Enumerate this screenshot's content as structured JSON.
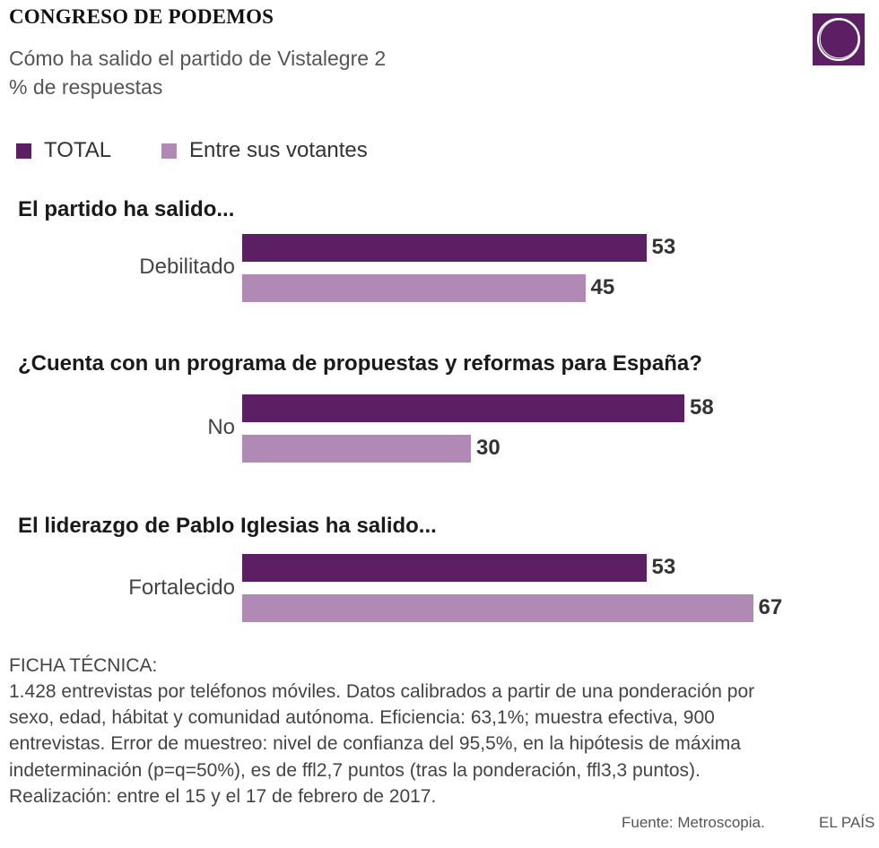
{
  "header": {
    "title": "CONGRESO DE PODEMOS",
    "subtitle": "Cómo ha salido el partido de Vistalegre 2",
    "unit": "% de respuestas"
  },
  "colors": {
    "total": "#5c1f63",
    "votantes": "#b08ab4",
    "logo_bg": "#5c1f63"
  },
  "logo": {
    "icon": "podemos-circle-logo"
  },
  "legend": [
    {
      "label": "TOTAL",
      "color": "#5c1f63"
    },
    {
      "label": "Entre sus votantes",
      "color": "#b08ab4"
    }
  ],
  "chart_data": {
    "type": "bar",
    "orientation": "horizontal",
    "title": "Cómo ha salido el partido de Vistalegre 2",
    "xlabel": "",
    "ylabel": "% de respuestas",
    "xlim": [
      0,
      100
    ],
    "series": [
      {
        "name": "TOTAL"
      },
      {
        "name": "Entre sus votantes"
      }
    ],
    "groups": [
      {
        "question": "El partido ha salido...",
        "category": "Debilitado",
        "values": [
          53,
          45
        ]
      },
      {
        "question": "¿Cuenta con un programa de propuestas y reformas para España?",
        "category": "No",
        "values": [
          58,
          30
        ]
      },
      {
        "question": "El liderazgo de Pablo Iglesias ha salido...",
        "category": "Fortalecido",
        "values": [
          53,
          67
        ]
      }
    ]
  },
  "ficha": {
    "title": "FICHA TÉCNICA:",
    "lines": [
      "1.428 entrevistas por teléfonos móviles. Datos calibrados a partir de una ponderación por",
      "sexo, edad, hábitat y comunidad autónoma. Eficiencia: 63,1%; muestra efectiva, 900",
      "entrevistas. Error de muestreo: nivel de confianza del 95,5%, en la hipótesis de máxima",
      "indeterminación (p=q=50%), es de ffl2,7 puntos (tras la ponderación, ffl3,3 puntos).",
      "Realización: entre el 15 y el 17 de febrero de 2017."
    ]
  },
  "footer": {
    "source": "Fuente: Metroscopia.",
    "brand": "EL PAÍS"
  }
}
